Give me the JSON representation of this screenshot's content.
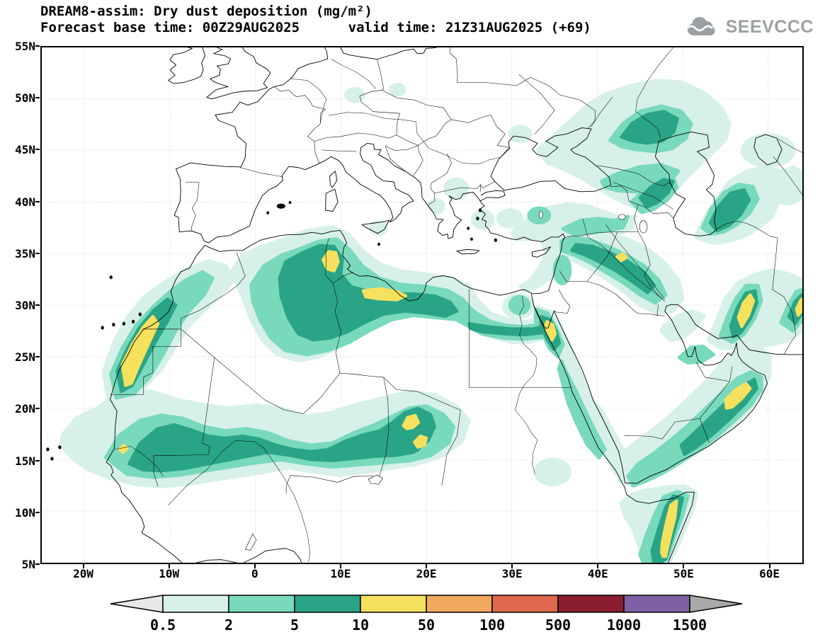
{
  "header": {
    "title_line1": "DREAM8-assim: Dry dust deposition (mg/m²)",
    "title_line2": "Forecast base time: 00Z29AUG2025      valid time: 21Z31AUG2025 (+69)",
    "logo_text": "SEEVCCC"
  },
  "map": {
    "extent": {
      "lon_min": -25,
      "lon_max": 64,
      "lat_min": 5,
      "lat_max": 55
    },
    "lat_ticks": [
      {
        "value": 55,
        "label": "55N"
      },
      {
        "value": 50,
        "label": "50N"
      },
      {
        "value": 45,
        "label": "45N"
      },
      {
        "value": 40,
        "label": "40N"
      },
      {
        "value": 35,
        "label": "35N"
      },
      {
        "value": 30,
        "label": "30N"
      },
      {
        "value": 25,
        "label": "25N"
      },
      {
        "value": 20,
        "label": "20N"
      },
      {
        "value": 15,
        "label": "15N"
      },
      {
        "value": 10,
        "label": "10N"
      },
      {
        "value": 5,
        "label": "5N"
      }
    ],
    "lon_ticks": [
      {
        "value": -20,
        "label": "20W"
      },
      {
        "value": -10,
        "label": "10W"
      },
      {
        "value": 0,
        "label": "0"
      },
      {
        "value": 10,
        "label": "10E"
      },
      {
        "value": 20,
        "label": "20E"
      },
      {
        "value": 30,
        "label": "30E"
      },
      {
        "value": 40,
        "label": "40E"
      },
      {
        "value": 50,
        "label": "50E"
      },
      {
        "value": 60,
        "label": "60E"
      }
    ]
  },
  "legend": {
    "values": [
      "0.5",
      "2",
      "5",
      "10",
      "50",
      "100",
      "500",
      "1000",
      "1500"
    ],
    "colors": [
      "#e8e8e8",
      "#d7f0ea",
      "#79d9bd",
      "#2aa486",
      "#f6e15e",
      "#f0a95c",
      "#e0684e",
      "#8b1d31",
      "#7e61a4",
      "#a9a9a9"
    ]
  },
  "chart_data": {
    "type": "heatmap",
    "title": "DREAM8-assim: Dry dust deposition (mg/m²)",
    "units": "mg/m²",
    "levels": [
      0.5,
      2,
      5,
      10,
      50,
      100,
      500,
      1000,
      1500
    ],
    "level_colors": [
      "#e8e8e8",
      "#d7f0ea",
      "#79d9bd",
      "#2aa486",
      "#f6e15e",
      "#f0a95c",
      "#e0684e",
      "#8b1d31",
      "#7e61a4",
      "#a9a9a9"
    ],
    "lon_range": [
      -25,
      64
    ],
    "lat_range": [
      5,
      55
    ],
    "visible_peaks": [
      {
        "area": "Western Sahara / Mauritania coast",
        "max_band_mg_m2": "10-50"
      },
      {
        "area": "Tunisia - NE Algeria chotts",
        "max_band_mg_m2": "10-50"
      },
      {
        "area": "Libyan coast (Gulf of Sidra)",
        "max_band_mg_m2": "10-50"
      },
      {
        "area": "Sahel band 15-20N (Senegal to Chad)",
        "max_band_mg_m2": "5-10, cores 10-50 over Chad"
      },
      {
        "area": "Northern Red Sea / Gulf of Aqaba",
        "max_band_mg_m2": "10-50"
      },
      {
        "area": "Syria - Iraq band",
        "max_band_mg_m2": "5-10"
      },
      {
        "area": "Interior Oman",
        "max_band_mg_m2": "10-50"
      },
      {
        "area": "NE Somalia",
        "max_band_mg_m2": "10-50"
      },
      {
        "area": "SE Iran",
        "max_band_mg_m2": "10-50"
      },
      {
        "area": "Afghanistan/Pakistan border (map edge)",
        "max_band_mg_m2": "10-50"
      },
      {
        "area": "Caspian lowlands / Caucasus",
        "max_band_mg_m2": "5-10"
      }
    ]
  }
}
